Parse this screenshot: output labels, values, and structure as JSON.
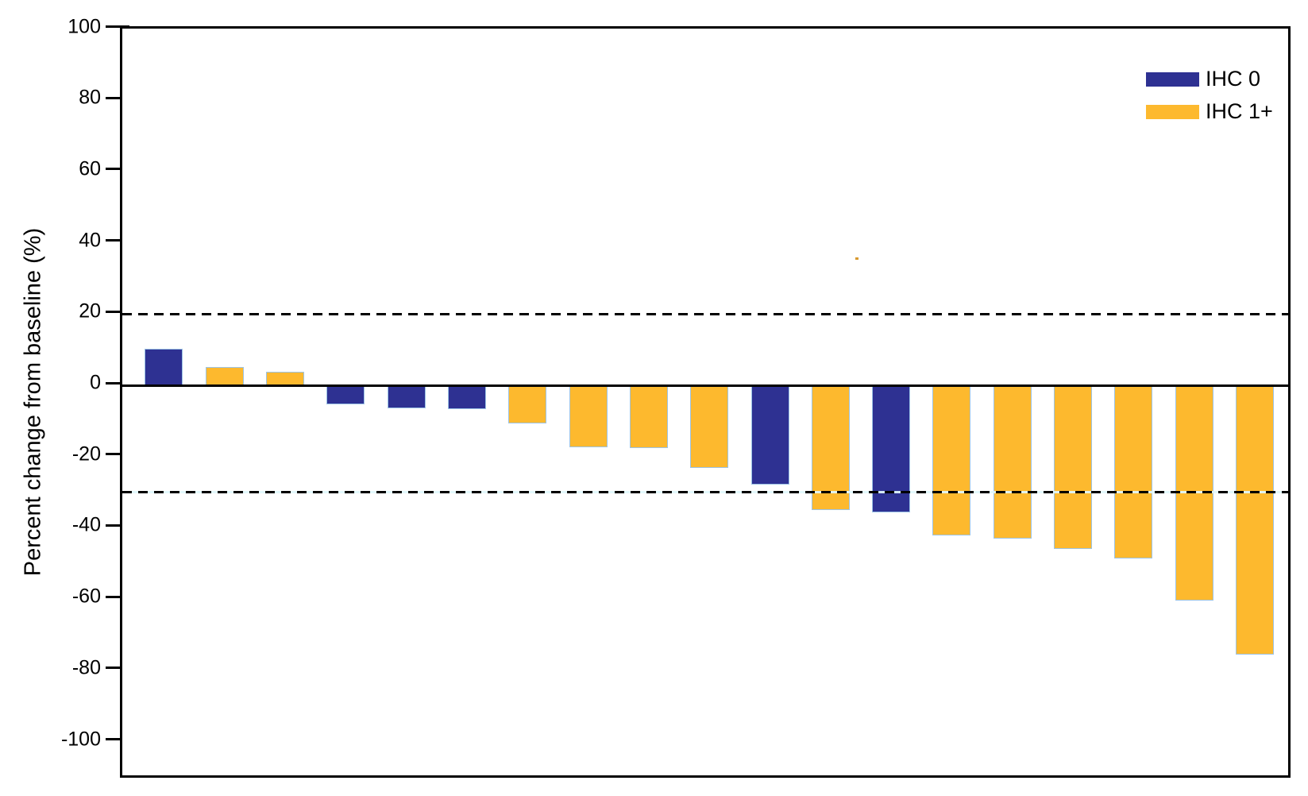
{
  "chart_data": {
    "type": "bar",
    "subtype": "waterfall",
    "title": "",
    "xlabel": "",
    "ylabel": "Percent change from baseline (%)",
    "ylim": [
      -111,
      100
    ],
    "yticks": [
      100,
      80,
      60,
      40,
      20,
      0,
      -20,
      -40,
      -60,
      -80,
      -100
    ],
    "ytick_labels": [
      "100",
      "80",
      "60",
      "40",
      "20",
      "0",
      "-20",
      "-40",
      "-60",
      "-80",
      "-100"
    ],
    "grid": false,
    "legend_position": "top-right-inside",
    "legend": [
      {
        "name": "IHC 0",
        "color": "#2e3192"
      },
      {
        "name": "IHC 1+",
        "color": "#fdb92e"
      }
    ],
    "bar_outline_color": "#9cc3e5",
    "reference_lines": [
      {
        "y": 20,
        "style": "dashed",
        "color": "#000000"
      },
      {
        "y": -30,
        "style": "dashed",
        "color": "#000000"
      }
    ],
    "bars": [
      {
        "value": 10.2,
        "group": "IHC 0"
      },
      {
        "value": 5.2,
        "group": "IHC 1+"
      },
      {
        "value": 3.9,
        "group": "IHC 1+"
      },
      {
        "value": -5.4,
        "group": "IHC 0"
      },
      {
        "value": -6.5,
        "group": "IHC 0"
      },
      {
        "value": -6.8,
        "group": "IHC 0"
      },
      {
        "value": -10.7,
        "group": "IHC 1+"
      },
      {
        "value": -17.3,
        "group": "IHC 1+"
      },
      {
        "value": -17.6,
        "group": "IHC 1+"
      },
      {
        "value": -23.1,
        "group": "IHC 1+"
      },
      {
        "value": -27.9,
        "group": "IHC 0"
      },
      {
        "value": -34.9,
        "group": "IHC 1+"
      },
      {
        "value": -35.7,
        "group": "IHC 0"
      },
      {
        "value": -42.2,
        "group": "IHC 1+"
      },
      {
        "value": -43.1,
        "group": "IHC 1+"
      },
      {
        "value": -46.0,
        "group": "IHC 1+"
      },
      {
        "value": -48.7,
        "group": "IHC 1+"
      },
      {
        "value": -60.4,
        "group": "IHC 1+"
      },
      {
        "value": -75.5,
        "group": "IHC 1+"
      }
    ]
  }
}
